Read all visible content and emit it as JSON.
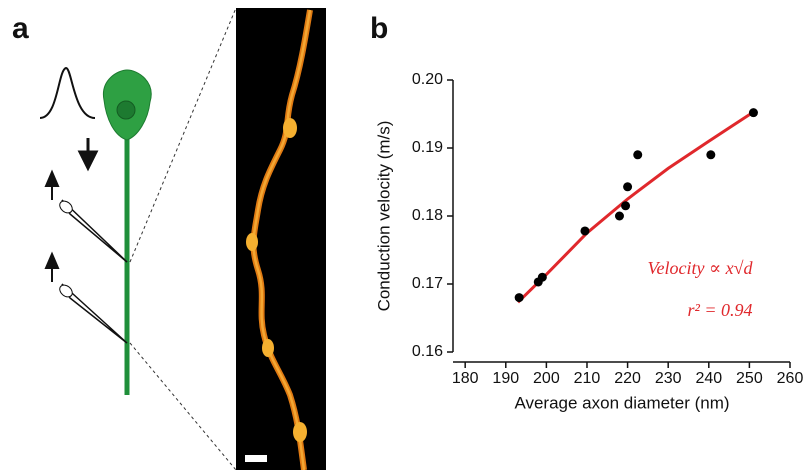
{
  "figure": {
    "panel_labels": [
      "a",
      "b"
    ]
  },
  "chart_data": {
    "type": "scatter",
    "x_label": "Average axon diameter (nm)",
    "y_label": "Conduction velocity (m/s)",
    "annotations": [
      "Velocity ∝ x√d",
      "r² = 0.94"
    ],
    "xlim": [
      177,
      260
    ],
    "xticks": [
      180,
      190,
      200,
      210,
      220,
      230,
      240,
      250,
      260
    ],
    "ylim": [
      0.16,
      0.2
    ],
    "yticks": [
      0.16,
      0.17,
      0.18,
      0.19,
      {
        "value": 0.2,
        "label": "0.20"
      }
    ],
    "series": [
      {
        "kind": "points",
        "color": "#000000",
        "x": [
          193.3,
          198,
          199,
          209.5,
          218,
          219.5,
          220,
          222.5,
          240.5,
          251
        ],
        "values": [
          0.168,
          0.1703,
          0.171,
          0.1778,
          0.18,
          0.1815,
          0.1843,
          0.189,
          0.189,
          0.1952
        ]
      },
      {
        "kind": "fit",
        "color": "#e0282c",
        "x": [
          193,
          200,
          210,
          220,
          230,
          240,
          251
        ],
        "values": [
          0.1673,
          0.1714,
          0.1775,
          0.1825,
          0.187,
          0.191,
          0.1953
        ]
      }
    ]
  }
}
